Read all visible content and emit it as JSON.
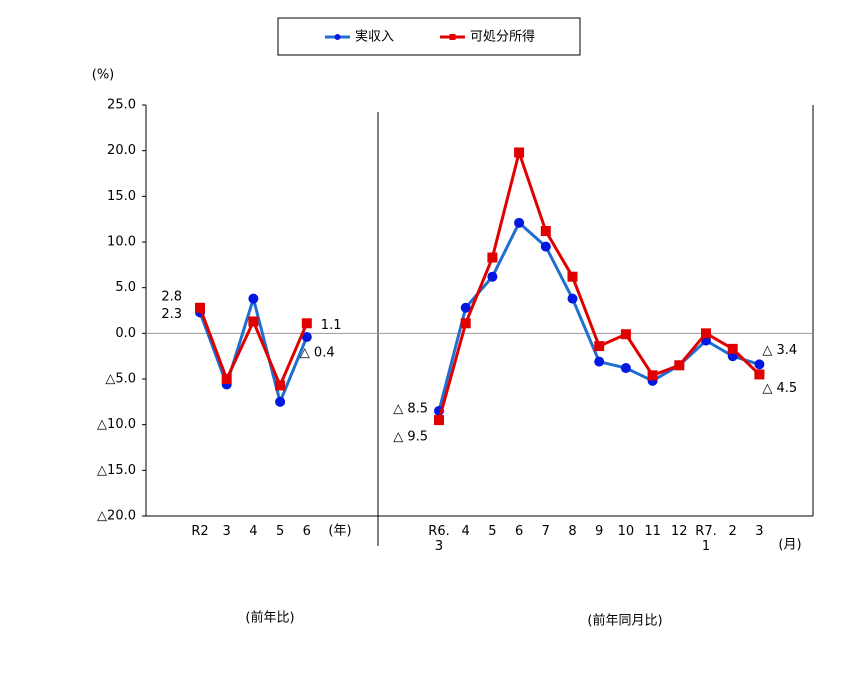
{
  "chart_data": [
    {
      "type": "line",
      "ylabel": "(%)",
      "xlabel": "(年)",
      "caption": "(前年比)",
      "categories": [
        "R2",
        "3",
        "4",
        "5",
        "6"
      ],
      "ylim": [
        -20,
        25
      ],
      "yticks": [
        {
          "value": 25,
          "label": "25.0"
        },
        {
          "value": 20,
          "label": "20.0"
        },
        {
          "value": 15,
          "label": "15.0"
        },
        {
          "value": 10,
          "label": "10.0"
        },
        {
          "value": 5,
          "label": "5.0"
        },
        {
          "value": 0,
          "label": "0.0"
        },
        {
          "value": -5,
          "label": "△5.0"
        },
        {
          "value": -10,
          "label": "△10.0"
        },
        {
          "value": -15,
          "label": "△15.0"
        },
        {
          "value": -20,
          "label": "△20.0"
        }
      ],
      "series": [
        {
          "name": "実収入",
          "color": "#1f6fd0",
          "marker": "circle",
          "values": [
            2.3,
            -5.6,
            3.8,
            -7.5,
            -0.4
          ],
          "value_labels": [
            "2.3",
            null,
            null,
            null,
            "△ 0.4"
          ]
        },
        {
          "name": "可処分所得",
          "color": "#e00000",
          "marker": "square",
          "values": [
            2.8,
            -5.0,
            1.3,
            -5.7,
            1.1
          ],
          "value_labels": [
            "2.8",
            null,
            null,
            null,
            "1.1"
          ]
        }
      ]
    },
    {
      "type": "line",
      "xlabel": "(月)",
      "caption": "(前年同月比)",
      "categories": [
        "R6.\n3",
        "4",
        "5",
        "6",
        "7",
        "8",
        "9",
        "10",
        "11",
        "12",
        "R7.\n1",
        "2",
        "3"
      ],
      "series": [
        {
          "name": "実収入",
          "color": "#1f6fd0",
          "marker": "circle",
          "values": [
            -8.5,
            2.8,
            6.2,
            12.1,
            9.5,
            3.8,
            -3.1,
            -3.8,
            -5.2,
            -3.5,
            -0.8,
            -2.5,
            -3.4
          ],
          "value_labels": [
            "△ 8.5",
            null,
            null,
            null,
            null,
            null,
            null,
            null,
            null,
            null,
            null,
            null,
            "△ 3.4"
          ]
        },
        {
          "name": "可処分所得",
          "color": "#e00000",
          "marker": "square",
          "values": [
            -9.5,
            1.1,
            8.3,
            19.8,
            11.2,
            6.2,
            -1.4,
            -0.1,
            -4.6,
            -3.5,
            0.0,
            -1.7,
            -4.5
          ],
          "value_labels": [
            "△ 9.5",
            null,
            null,
            null,
            null,
            null,
            null,
            null,
            null,
            null,
            null,
            null,
            "△ 4.5"
          ]
        }
      ]
    }
  ]
}
